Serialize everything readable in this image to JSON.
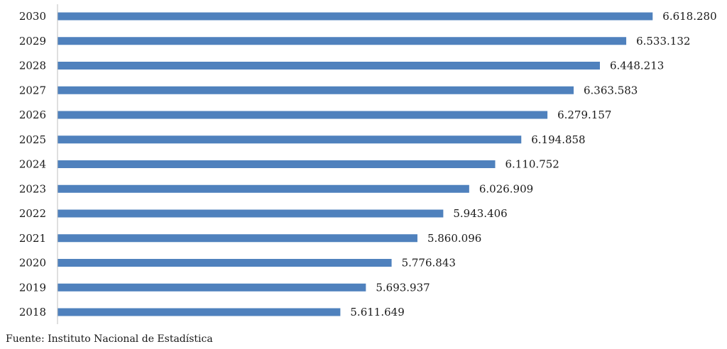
{
  "chart_data": {
    "type": "bar",
    "orientation": "horizontal",
    "categories": [
      "2030",
      "2029",
      "2028",
      "2027",
      "2026",
      "2025",
      "2024",
      "2023",
      "2022",
      "2021",
      "2020",
      "2019",
      "2018"
    ],
    "values": [
      6618280,
      6533132,
      6448213,
      6363583,
      6279157,
      6194858,
      6110752,
      6026909,
      5943406,
      5860096,
      5776843,
      5693937,
      5611649
    ],
    "value_labels": [
      "6.618.280",
      "6.533.132",
      "6.448.213",
      "6.363.583",
      "6.279.157",
      "6.194.858",
      "6.110.752",
      "6.026.909",
      "5.943.406",
      "5.860.096",
      "5.776.843",
      "5.693.937",
      "5.611.649"
    ],
    "title": "",
    "xlabel": "",
    "ylabel": "",
    "xlim": [
      4700000,
      6700000
    ],
    "grid": false,
    "legend": "none",
    "bar_color": "#4f81bd"
  },
  "source": "Fuente: Instituto Nacional de Estadística"
}
